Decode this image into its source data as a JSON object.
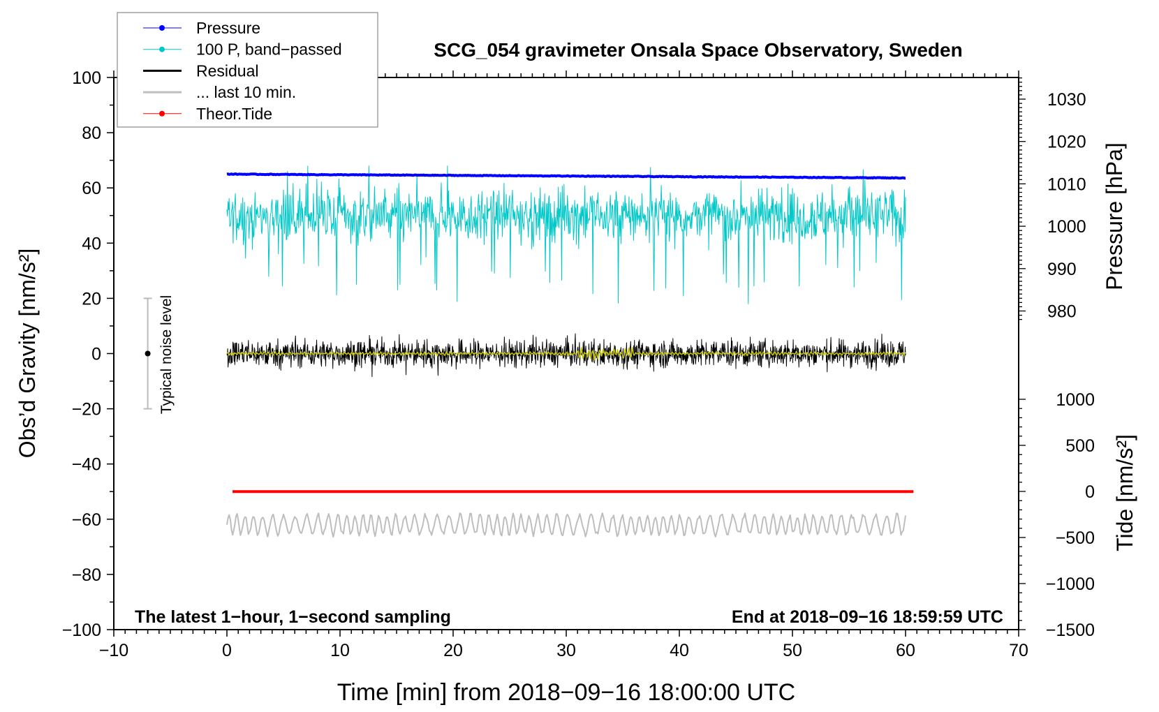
{
  "chart_data": {
    "type": "line",
    "title": "SCG_054 gravimeter Onsala Space Observatory, Sweden",
    "xlabel": "Time [min] from 2018−09−16 18:00:00 UTC",
    "ylabel_left": "Obs’d Gravity [nm/s²]",
    "ylabel_right_pressure": "Pressure [hPa]",
    "ylabel_right_tide": "Tide [nm/s²]",
    "xlim": [
      -10,
      70
    ],
    "ylim": [
      -100,
      100
    ],
    "pressure_lim_shown": [
      980,
      1030
    ],
    "tide_lim_shown": [
      -1500,
      1000
    ],
    "x_ticks": [
      "−10",
      "0",
      "10",
      "20",
      "30",
      "40",
      "50",
      "60",
      "70"
    ],
    "x_tick_values": [
      -10,
      0,
      10,
      20,
      30,
      40,
      50,
      60,
      70
    ],
    "y_ticks": [
      "100",
      "80",
      "60",
      "40",
      "20",
      "0",
      "−20",
      "−40",
      "−60",
      "−80",
      "−100"
    ],
    "y_tick_values": [
      100,
      80,
      60,
      40,
      20,
      0,
      -20,
      -40,
      -60,
      -80,
      -100
    ],
    "pressure_ticks": [
      "1030",
      "1020",
      "1010",
      "1000",
      "990",
      "980"
    ],
    "pressure_tick_values": [
      1030,
      1020,
      1010,
      1000,
      990,
      980
    ],
    "tide_ticks": [
      "1000",
      "500",
      "0",
      "−500",
      "−1000",
      "−1500"
    ],
    "tide_tick_values": [
      1000,
      500,
      0,
      -500,
      -1000,
      -1500
    ],
    "annotations": {
      "bottom_left": "The latest 1−hour, 1−second sampling",
      "bottom_right": "End at 2018−09−16 18:59:59 UTC",
      "noise_label": "Typical noise level"
    },
    "noise_bar": {
      "x": -7,
      "center": 0,
      "half_range": 20
    },
    "legend": {
      "placement": "top-left",
      "entries": [
        {
          "label": "Pressure",
          "color": "#0000ff",
          "marker": true
        },
        {
          "label": "100 P, band−passed",
          "color": "#00c8c8",
          "marker": true
        },
        {
          "label": "Residual",
          "color": "#000000",
          "marker": false
        },
        {
          "label": "... last 10 min.",
          "color": "#bebebe",
          "marker": false
        },
        {
          "label": "Theor.Tide",
          "color": "#ff0000",
          "marker": true
        }
      ]
    },
    "series": [
      {
        "name": "Pressure",
        "axis": "pressure",
        "color": "#0000ff",
        "x_range": [
          0,
          60
        ],
        "start": 1012.3,
        "end": 1011.4,
        "noise": 0.15
      },
      {
        "name": "100 P, band-passed",
        "axis": "gravity",
        "color": "#00c8c8",
        "x_range": [
          0,
          60
        ],
        "mean": 50,
        "noise": 6,
        "min": 18,
        "max": 68
      },
      {
        "name": "Residual",
        "axis": "gravity",
        "color": "#000000",
        "x_range": [
          0,
          60
        ],
        "mean": 0,
        "noise": 3.5,
        "min": -10,
        "max": 10
      },
      {
        "name": "Residual smoothed",
        "axis": "gravity",
        "color": "#c8c800",
        "x_range": [
          0,
          60
        ],
        "mean": 0,
        "noise": 0.8
      },
      {
        "name": "Theor.Tide",
        "axis": "gravity",
        "color": "#ff0000",
        "x_range": [
          0.5,
          60.7
        ],
        "value": -50
      },
      {
        "name": "... last 10 min.",
        "axis": "gravity",
        "color": "#bebebe",
        "x_range": [
          0,
          60
        ],
        "mean": -62,
        "amplitude": 4
      }
    ]
  }
}
